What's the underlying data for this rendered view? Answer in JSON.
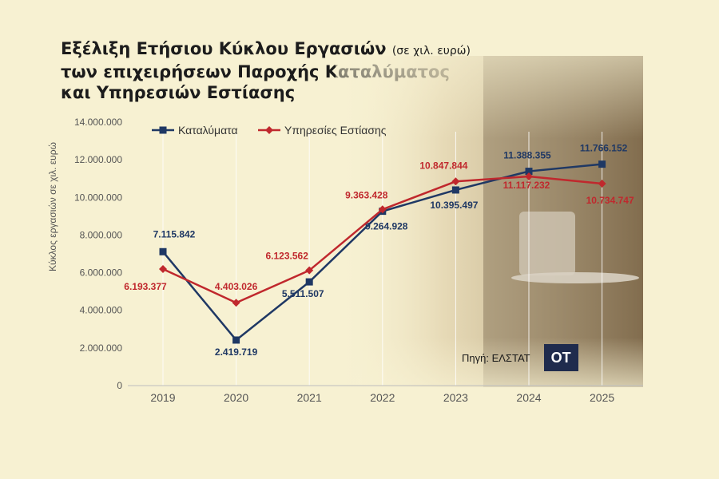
{
  "title": {
    "line1": "Εξέλιξη Ετήσιου Κύκλου Εργασιών",
    "unit": "(σε χιλ. ευρώ)",
    "line2": "των επιχειρήσεων Παροχής Καταλύματος",
    "line3": "και Υπηρεσιών Εστίασης"
  },
  "source_label": "Πηγή: ΕΛΣΤΑΤ",
  "logo_text": "ΟΤ",
  "chart_data": {
    "type": "line",
    "x": [
      "2019",
      "2020",
      "2021",
      "2022",
      "2023",
      "2024",
      "2025"
    ],
    "ylabel": "Κύκλος εργασιών σε χιλ. ευρώ",
    "ylim": [
      0,
      14000000
    ],
    "yticks": [
      0,
      2000000,
      4000000,
      6000000,
      8000000,
      10000000,
      12000000,
      14000000
    ],
    "ytick_labels": [
      "0",
      "2.000.000",
      "4.000.000",
      "6.000.000",
      "8.000.000",
      "10.000.000",
      "12.000.000",
      "14.000.000"
    ],
    "legend_position": "top-left",
    "grid": "vertical",
    "series": [
      {
        "name": "Καταλύματα",
        "color": "#1f3864",
        "marker": "square",
        "values": [
          7115842,
          2419719,
          5511507,
          9264928,
          10395497,
          11388355,
          11766152
        ],
        "labels": [
          "7.115.842",
          "2.419.719",
          "5.511.507",
          "9.264.928",
          "10.395.497",
          "11.388.355",
          "11.766.152"
        ]
      },
      {
        "name": "Υπηρεσίες Εστίασης",
        "color": "#c0282d",
        "marker": "diamond",
        "values": [
          6193377,
          4403026,
          6123562,
          9363428,
          10847844,
          11117232,
          10734747
        ],
        "labels": [
          "6.193.377",
          "4.403.026",
          "6.123.562",
          "9.363.428",
          "10.847.844",
          "11.117.232",
          "10.734.747"
        ]
      }
    ]
  }
}
